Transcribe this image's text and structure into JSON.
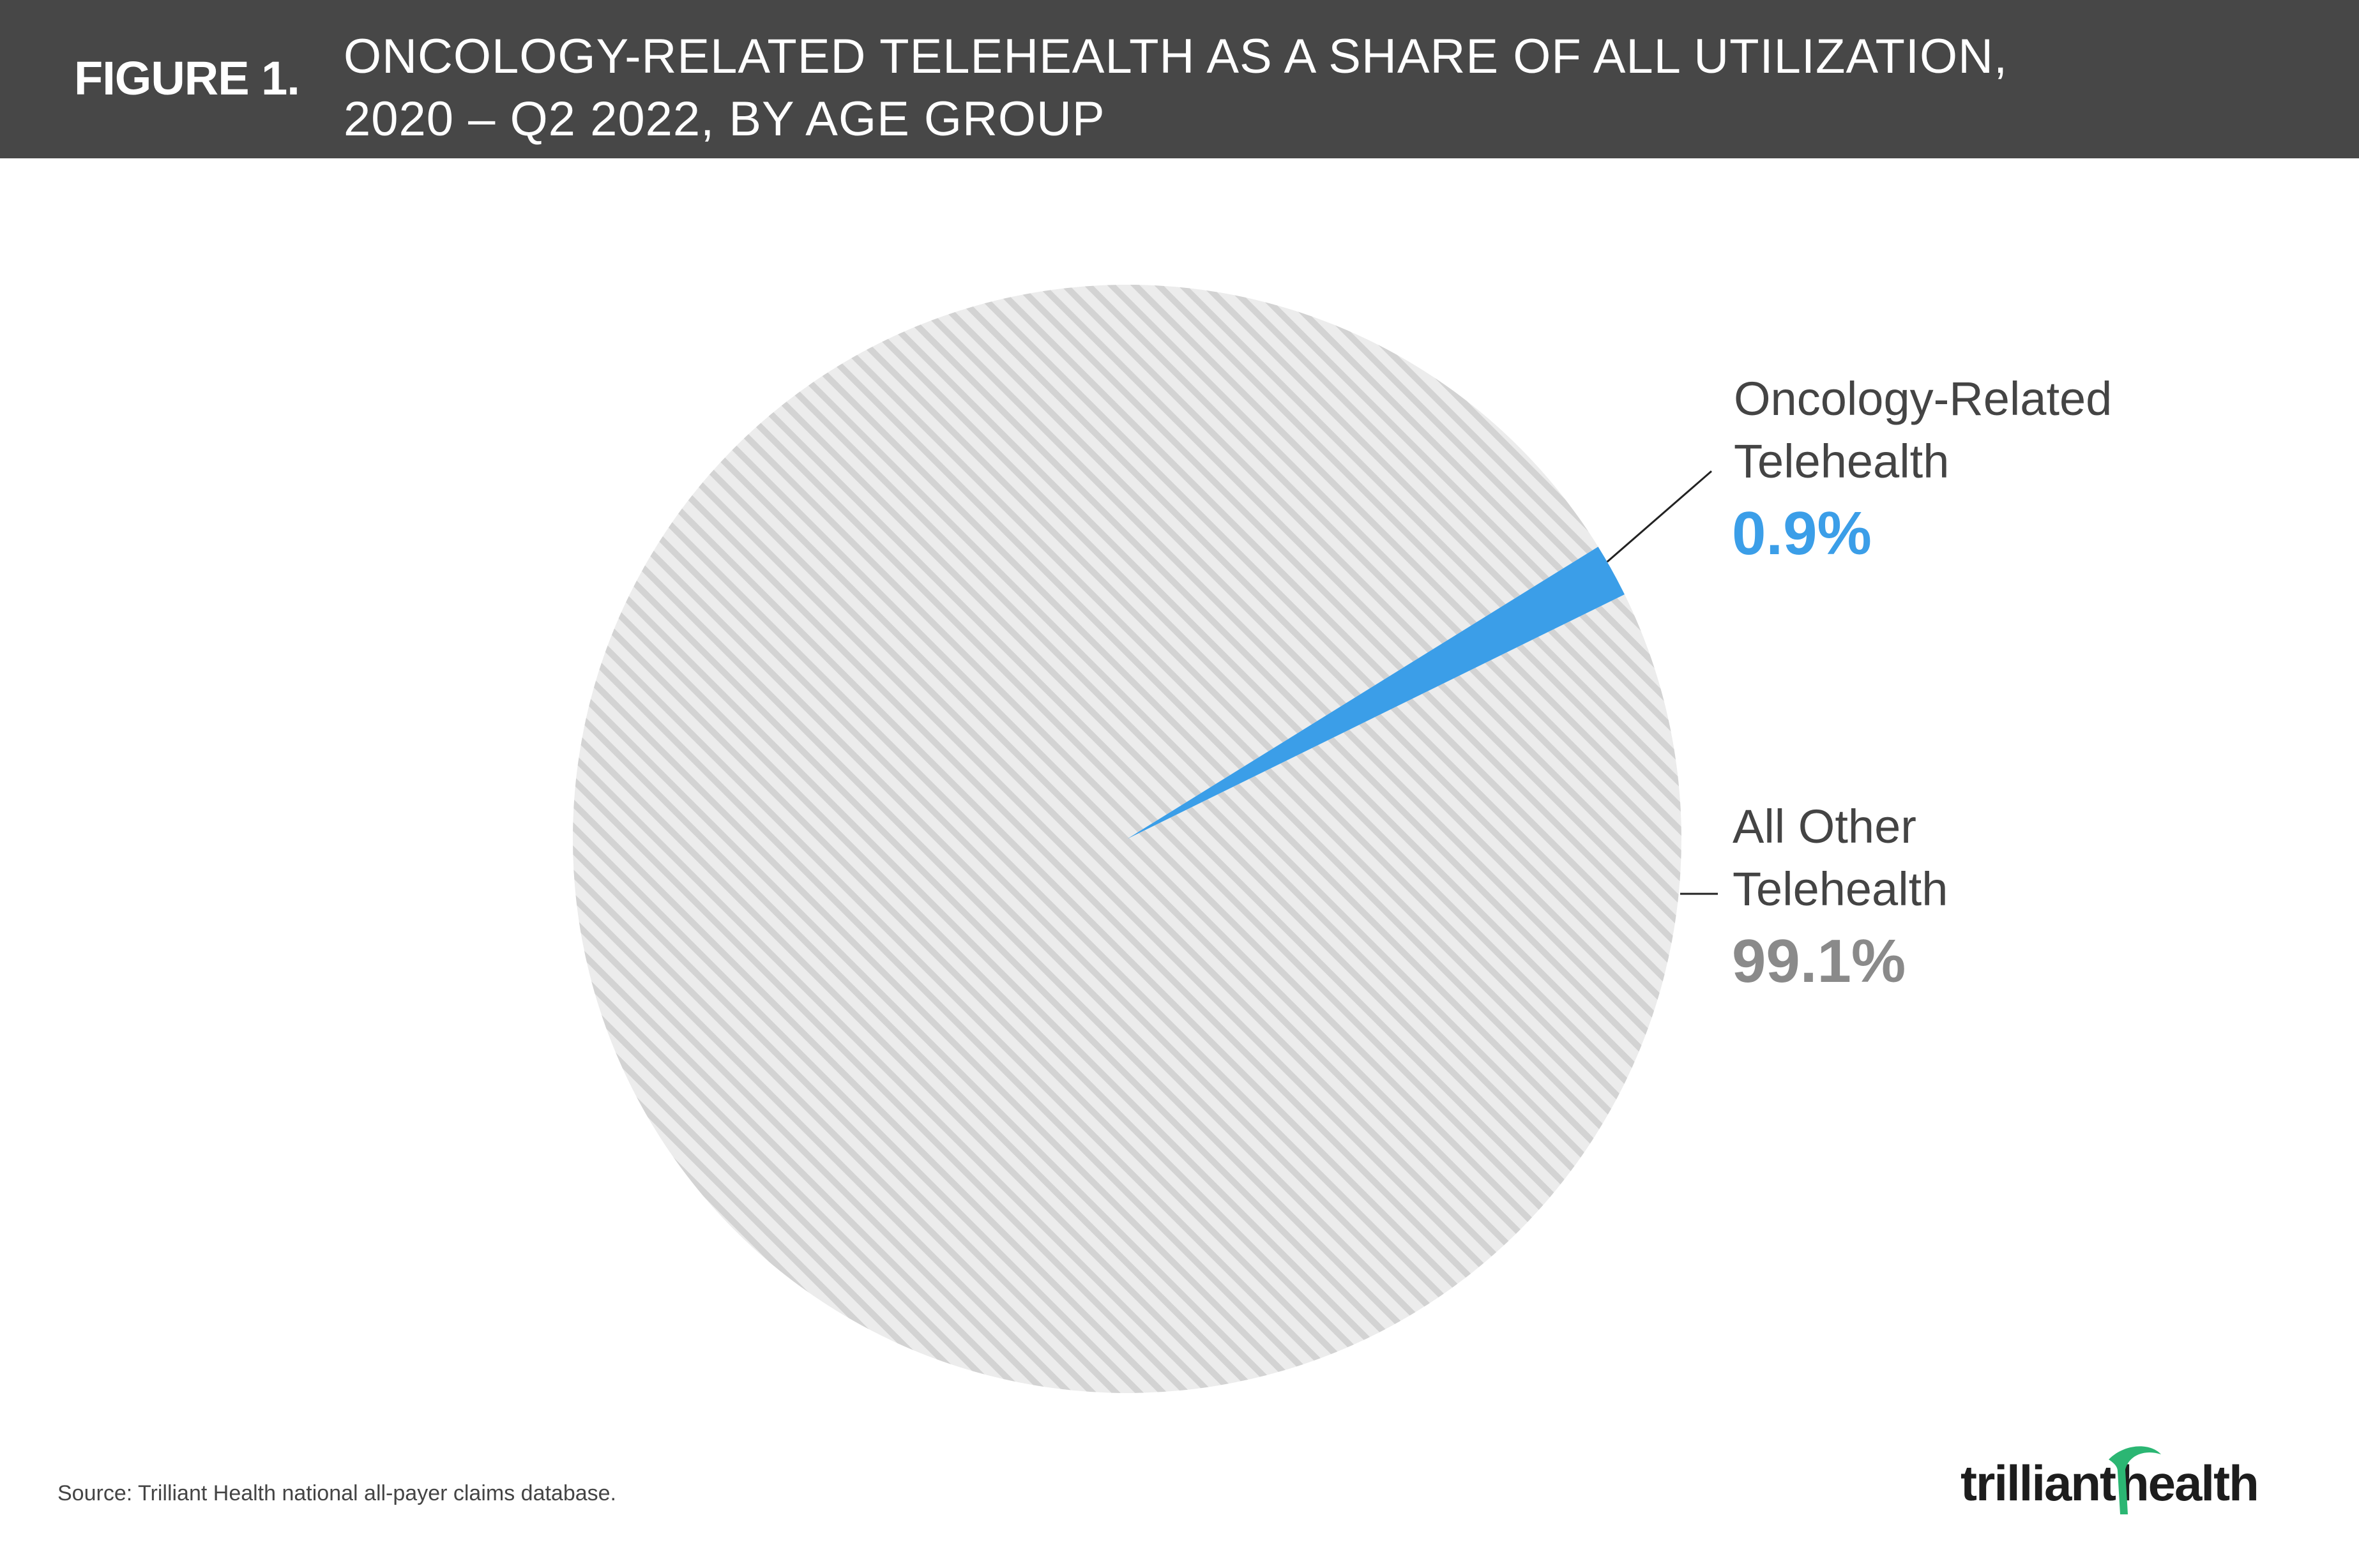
{
  "header": {
    "figure_label": "FIGURE 1.",
    "title_line1": "ONCOLOGY-RELATED TELEHEALTH AS A SHARE OF ALL UTILIZATION,",
    "title_line2": "2020 – Q2 2022, BY AGE GROUP"
  },
  "chart_data": {
    "type": "pie",
    "slices": [
      {
        "name_line1": "Oncology-Related",
        "name_line2": "Telehealth",
        "value": 0.9,
        "value_label": "0.9%",
        "color": "#3b9ee8",
        "pattern": "solid"
      },
      {
        "name_line1": "All Other",
        "name_line2": "Telehealth",
        "value": 99.1,
        "value_label": "99.1%",
        "color": "#e3e3e3",
        "value_color": "#8a8a8a",
        "pattern": "diagonal-hatch"
      }
    ],
    "legend": "none",
    "data_labels": "outside-right-with-leader-lines"
  },
  "footer": {
    "source": "Source: Trilliant Health national all-payer claims database.",
    "logo_word1": "trilliant",
    "logo_word2": "health",
    "logo_accent_color": "#2bb673"
  }
}
